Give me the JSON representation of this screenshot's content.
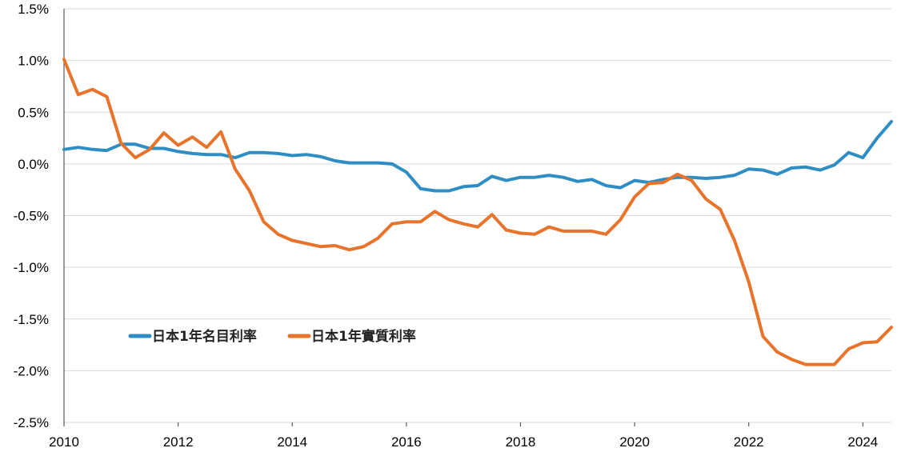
{
  "chart_data": {
    "type": "line",
    "title": "",
    "xlabel": "",
    "ylabel": "",
    "xlim": [
      2010,
      2024.5
    ],
    "ylim": [
      -2.5,
      1.5
    ],
    "x_ticks": [
      2010,
      2012,
      2014,
      2016,
      2018,
      2020,
      2022,
      2024
    ],
    "x_tick_labels": [
      "2010",
      "2012",
      "2014",
      "2016",
      "2018",
      "2020",
      "2022",
      "2024"
    ],
    "y_ticks": [
      1.5,
      1.0,
      0.5,
      0.0,
      -0.5,
      -1.0,
      -1.5,
      -2.0,
      -2.5
    ],
    "y_tick_labels": [
      "1.5%",
      "1.0%",
      "0.5%",
      "0.0%",
      "-0.5%",
      "-1.0%",
      "-1.5%",
      "-2.0%",
      "-2.5%"
    ],
    "grid": true,
    "legend_position": "lower-left",
    "series": [
      {
        "name": "日本1年名目利率",
        "color": "#2E8EC4",
        "points": [
          [
            2010.0,
            0.14
          ],
          [
            2010.25,
            0.16
          ],
          [
            2010.5,
            0.14
          ],
          [
            2010.75,
            0.13
          ],
          [
            2011.0,
            0.19
          ],
          [
            2011.25,
            0.19
          ],
          [
            2011.5,
            0.15
          ],
          [
            2011.75,
            0.15
          ],
          [
            2012.0,
            0.12
          ],
          [
            2012.25,
            0.1
          ],
          [
            2012.5,
            0.09
          ],
          [
            2012.75,
            0.09
          ],
          [
            2013.0,
            0.06
          ],
          [
            2013.25,
            0.11
          ],
          [
            2013.5,
            0.11
          ],
          [
            2013.75,
            0.1
          ],
          [
            2014.0,
            0.08
          ],
          [
            2014.25,
            0.09
          ],
          [
            2014.5,
            0.07
          ],
          [
            2014.75,
            0.03
          ],
          [
            2015.0,
            0.01
          ],
          [
            2015.25,
            0.01
          ],
          [
            2015.5,
            0.01
          ],
          [
            2015.75,
            0.0
          ],
          [
            2016.0,
            -0.08
          ],
          [
            2016.25,
            -0.24
          ],
          [
            2016.5,
            -0.26
          ],
          [
            2016.75,
            -0.26
          ],
          [
            2017.0,
            -0.22
          ],
          [
            2017.25,
            -0.21
          ],
          [
            2017.5,
            -0.12
          ],
          [
            2017.75,
            -0.16
          ],
          [
            2018.0,
            -0.13
          ],
          [
            2018.25,
            -0.13
          ],
          [
            2018.5,
            -0.11
          ],
          [
            2018.75,
            -0.13
          ],
          [
            2019.0,
            -0.17
          ],
          [
            2019.25,
            -0.15
          ],
          [
            2019.5,
            -0.21
          ],
          [
            2019.75,
            -0.23
          ],
          [
            2020.0,
            -0.16
          ],
          [
            2020.25,
            -0.18
          ],
          [
            2020.5,
            -0.15
          ],
          [
            2020.75,
            -0.13
          ],
          [
            2021.0,
            -0.13
          ],
          [
            2021.25,
            -0.14
          ],
          [
            2021.5,
            -0.13
          ],
          [
            2021.75,
            -0.11
          ],
          [
            2022.0,
            -0.05
          ],
          [
            2022.25,
            -0.06
          ],
          [
            2022.5,
            -0.1
          ],
          [
            2022.75,
            -0.04
          ],
          [
            2023.0,
            -0.03
          ],
          [
            2023.25,
            -0.06
          ],
          [
            2023.5,
            -0.01
          ],
          [
            2023.75,
            0.11
          ],
          [
            2024.0,
            0.06
          ],
          [
            2024.25,
            0.25
          ],
          [
            2024.5,
            0.41
          ]
        ]
      },
      {
        "name": "日本1年實質利率",
        "color": "#E8732A",
        "points": [
          [
            2010.0,
            1.01
          ],
          [
            2010.25,
            0.67
          ],
          [
            2010.5,
            0.72
          ],
          [
            2010.75,
            0.65
          ],
          [
            2011.0,
            0.2
          ],
          [
            2011.25,
            0.06
          ],
          [
            2011.5,
            0.14
          ],
          [
            2011.75,
            0.3
          ],
          [
            2012.0,
            0.18
          ],
          [
            2012.25,
            0.26
          ],
          [
            2012.5,
            0.16
          ],
          [
            2012.75,
            0.31
          ],
          [
            2013.0,
            -0.05
          ],
          [
            2013.25,
            -0.26
          ],
          [
            2013.5,
            -0.56
          ],
          [
            2013.75,
            -0.68
          ],
          [
            2014.0,
            -0.74
          ],
          [
            2014.25,
            -0.77
          ],
          [
            2014.5,
            -0.8
          ],
          [
            2014.75,
            -0.79
          ],
          [
            2015.0,
            -0.83
          ],
          [
            2015.25,
            -0.8
          ],
          [
            2015.5,
            -0.72
          ],
          [
            2015.75,
            -0.58
          ],
          [
            2016.0,
            -0.56
          ],
          [
            2016.25,
            -0.56
          ],
          [
            2016.5,
            -0.46
          ],
          [
            2016.75,
            -0.54
          ],
          [
            2017.0,
            -0.58
          ],
          [
            2017.25,
            -0.61
          ],
          [
            2017.5,
            -0.49
          ],
          [
            2017.75,
            -0.64
          ],
          [
            2018.0,
            -0.67
          ],
          [
            2018.25,
            -0.68
          ],
          [
            2018.5,
            -0.61
          ],
          [
            2018.75,
            -0.65
          ],
          [
            2019.0,
            -0.65
          ],
          [
            2019.25,
            -0.65
          ],
          [
            2019.5,
            -0.68
          ],
          [
            2019.75,
            -0.54
          ],
          [
            2020.0,
            -0.32
          ],
          [
            2020.25,
            -0.19
          ],
          [
            2020.5,
            -0.18
          ],
          [
            2020.75,
            -0.1
          ],
          [
            2021.0,
            -0.16
          ],
          [
            2021.25,
            -0.34
          ],
          [
            2021.5,
            -0.44
          ],
          [
            2021.75,
            -0.74
          ],
          [
            2022.0,
            -1.14
          ],
          [
            2022.25,
            -1.67
          ],
          [
            2022.5,
            -1.82
          ],
          [
            2022.75,
            -1.89
          ],
          [
            2023.0,
            -1.94
          ],
          [
            2023.25,
            -1.94
          ],
          [
            2023.5,
            -1.94
          ],
          [
            2023.75,
            -1.79
          ],
          [
            2024.0,
            -1.73
          ],
          [
            2024.25,
            -1.72
          ],
          [
            2024.5,
            -1.58
          ]
        ]
      }
    ]
  }
}
